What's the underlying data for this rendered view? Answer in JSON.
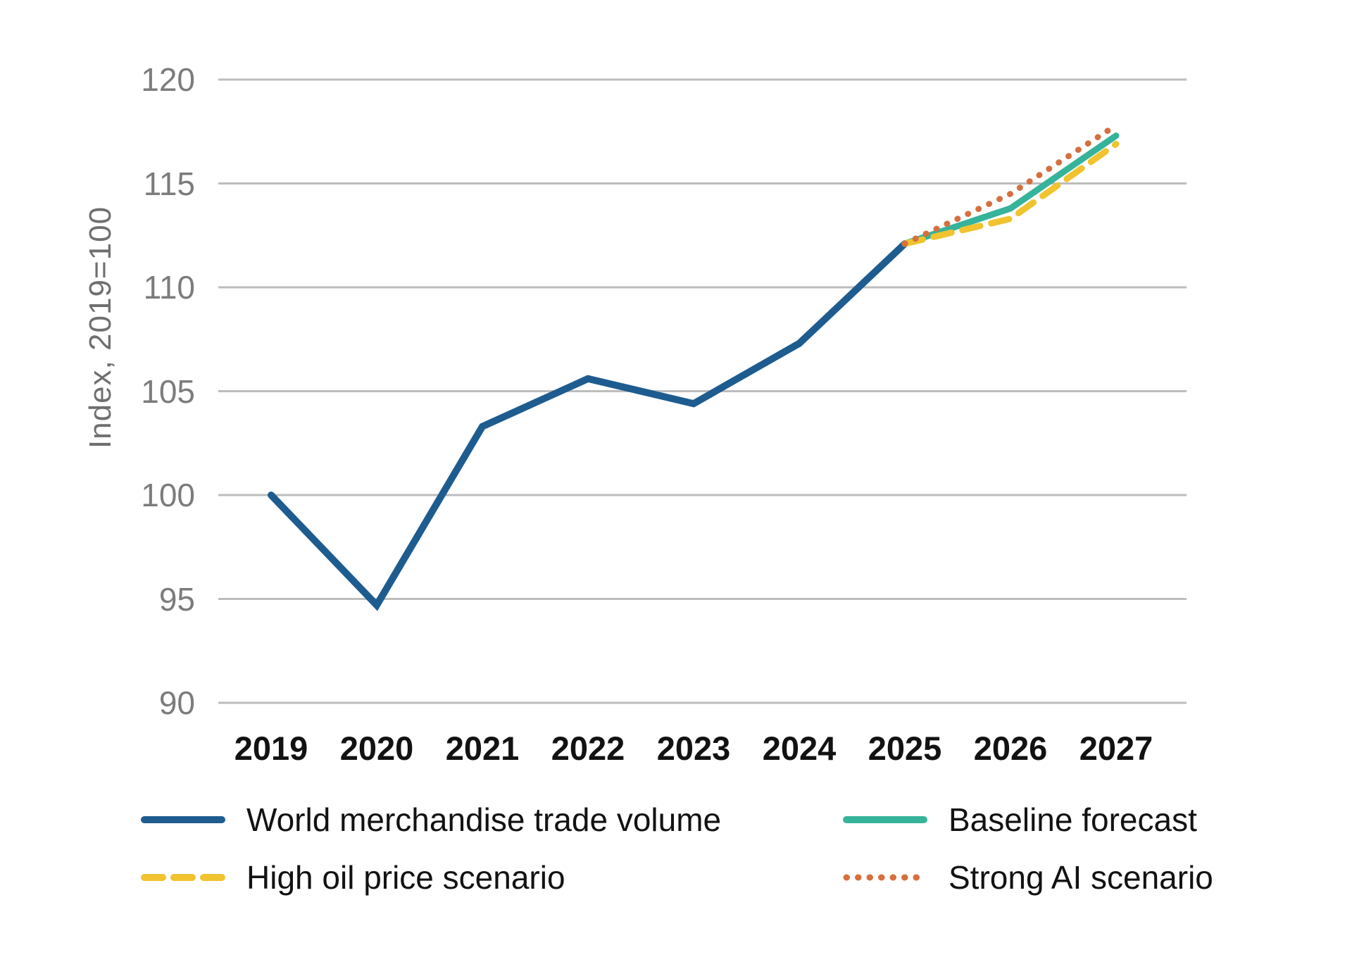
{
  "chart_data": {
    "type": "line",
    "title": "",
    "xlabel": "",
    "ylabel": "Index, 2019=100",
    "categories": [
      "2019",
      "2020",
      "2021",
      "2022",
      "2023",
      "2024",
      "2025",
      "2026",
      "2027"
    ],
    "y_ticks": [
      120,
      115,
      110,
      105,
      100,
      95,
      90
    ],
    "ylim": [
      90,
      120
    ],
    "grid": "horizontal",
    "legend_position": "bottom",
    "colors": {
      "history_blue": "#1e5c90",
      "baseline_teal": "#36b39b",
      "high_oil_yellow": "#f0c32f",
      "strong_ai_orange": "#d66f3e",
      "gridline": "#bdbdbd",
      "y_tick_text": "#7c7c7c",
      "x_tick_text": "#121212"
    },
    "series": [
      {
        "name": "World merchandise trade volume",
        "style": "solid",
        "color": "#1e5c90",
        "width": 10,
        "x": [
          2019,
          2020,
          2021,
          2022,
          2023,
          2024,
          2025
        ],
        "values": [
          100,
          94.7,
          103.3,
          105.6,
          104.4,
          107.3,
          112.1
        ]
      },
      {
        "name": "Baseline forecast",
        "style": "solid",
        "color": "#36b39b",
        "width": 9,
        "x": [
          2025,
          2026,
          2027
        ],
        "values": [
          112.1,
          113.8,
          117.3
        ]
      },
      {
        "name": "High oil price scenario",
        "style": "dashed",
        "color": "#f0c32f",
        "width": 9,
        "x": [
          2025,
          2026,
          2027
        ],
        "values": [
          112.1,
          113.3,
          116.9
        ]
      },
      {
        "name": "Strong AI scenario",
        "style": "dotted",
        "color": "#d66f3e",
        "width": 8.5,
        "x": [
          2025,
          2026,
          2027
        ],
        "values": [
          112.1,
          114.5,
          117.8
        ]
      }
    ]
  }
}
